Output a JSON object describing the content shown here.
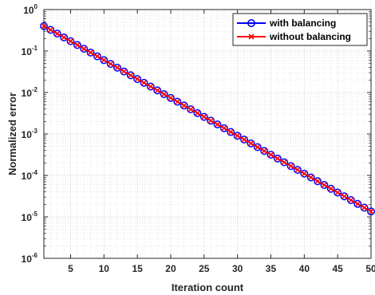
{
  "chart_data": {
    "type": "line",
    "xlabel": "Iteration count",
    "ylabel": "Normalized error",
    "xlim": [
      1,
      50
    ],
    "ylim": [
      1e-06,
      1
    ],
    "yscale": "log",
    "grid": true,
    "minor_grid": true,
    "legend_position": "top-right",
    "x_ticks": [
      5,
      10,
      15,
      20,
      25,
      30,
      35,
      40,
      45,
      50
    ],
    "x_tick_labels": [
      "5",
      "10",
      "15",
      "20",
      "25",
      "30",
      "35",
      "40",
      "45",
      "50"
    ],
    "y_ticks": [
      {
        "value": 1,
        "base": "10",
        "exp": "0"
      },
      {
        "value": 0.1,
        "base": "10",
        "exp": "-1"
      },
      {
        "value": 0.01,
        "base": "10",
        "exp": "-2"
      },
      {
        "value": 0.001,
        "base": "10",
        "exp": "-3"
      },
      {
        "value": 0.0001,
        "base": "10",
        "exp": "-4"
      },
      {
        "value": 1e-05,
        "base": "10",
        "exp": "-5"
      },
      {
        "value": 1e-06,
        "base": "10",
        "exp": "-6"
      }
    ],
    "series": [
      {
        "name": "with balancing",
        "color": "#0000ff",
        "marker": "circle",
        "x_start": 1,
        "x_end": 50,
        "y_start": 0.4,
        "y_end": 1.35e-05
      },
      {
        "name": "without balancing",
        "color": "#ff0000",
        "marker": "x",
        "x_start": 1,
        "x_end": 50,
        "y_start": 0.4,
        "y_end": 1.35e-05
      }
    ]
  }
}
